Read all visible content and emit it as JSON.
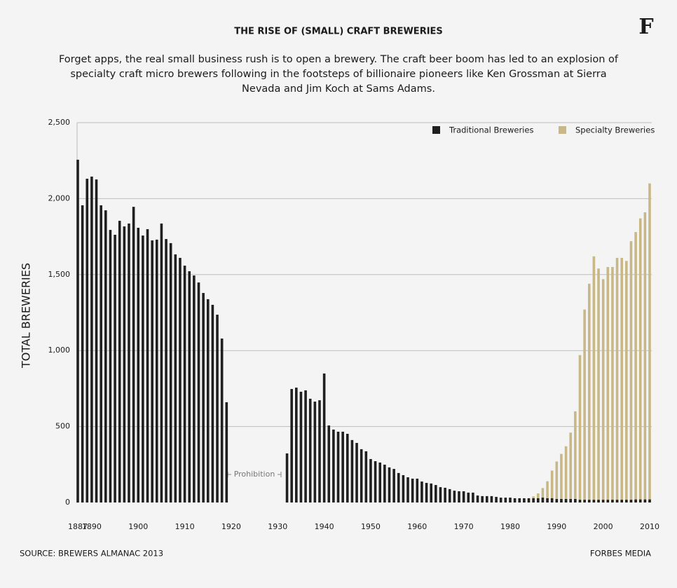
{
  "chart_data": {
    "type": "bar",
    "title": "THE RISE OF (SMALL) CRAFT BREWERIES",
    "subtitle": "Forget apps, the real small business rush is to open a brewery. The craft beer boom has led to an explosion of specialty craft micro brewers following in the footsteps of billionaire pioneers like Ken Grossman at Sierra Nevada and Jim Koch at Sams Adams.",
    "logo": "F",
    "y_label": "TOTAL BREWERIES",
    "annotation": "Prohibition",
    "source": "SOURCE: BREWERS ALMANAC 2013",
    "credit": "FORBES MEDIA",
    "x": [
      1887,
      1888,
      1889,
      1890,
      1891,
      1892,
      1893,
      1894,
      1895,
      1896,
      1897,
      1898,
      1899,
      1900,
      1901,
      1902,
      1903,
      1904,
      1905,
      1906,
      1907,
      1908,
      1909,
      1910,
      1911,
      1912,
      1913,
      1914,
      1915,
      1916,
      1917,
      1918,
      1919,
      1920,
      1921,
      1922,
      1923,
      1924,
      1925,
      1926,
      1927,
      1928,
      1929,
      1930,
      1931,
      1932,
      1933,
      1934,
      1935,
      1936,
      1937,
      1938,
      1939,
      1940,
      1941,
      1942,
      1943,
      1944,
      1945,
      1946,
      1947,
      1948,
      1949,
      1950,
      1951,
      1952,
      1953,
      1954,
      1955,
      1956,
      1957,
      1958,
      1959,
      1960,
      1961,
      1962,
      1963,
      1964,
      1965,
      1966,
      1967,
      1968,
      1969,
      1970,
      1971,
      1972,
      1973,
      1974,
      1975,
      1976,
      1977,
      1978,
      1979,
      1980,
      1981,
      1982,
      1983,
      1984,
      1985,
      1986,
      1987,
      1988,
      1989,
      1990,
      1991,
      1992,
      1993,
      1994,
      1995,
      1996,
      1997,
      1998,
      1999,
      2000,
      2001,
      2002,
      2003,
      2004,
      2005,
      2006,
      2007,
      2008,
      2009,
      2010
    ],
    "series": [
      {
        "name": "Specialty Breweries",
        "color": "#c9b887",
        "values": [
          null,
          null,
          null,
          null,
          null,
          null,
          null,
          null,
          null,
          null,
          null,
          null,
          null,
          null,
          null,
          null,
          null,
          null,
          null,
          null,
          null,
          null,
          null,
          null,
          null,
          null,
          null,
          null,
          null,
          null,
          null,
          null,
          null,
          null,
          null,
          null,
          null,
          null,
          null,
          null,
          null,
          null,
          null,
          null,
          null,
          null,
          null,
          null,
          null,
          null,
          null,
          null,
          null,
          null,
          null,
          null,
          null,
          null,
          null,
          null,
          null,
          null,
          null,
          null,
          null,
          null,
          null,
          null,
          null,
          null,
          null,
          null,
          null,
          null,
          null,
          null,
          null,
          null,
          null,
          null,
          null,
          null,
          null,
          null,
          null,
          null,
          null,
          null,
          null,
          null,
          null,
          null,
          null,
          5,
          8,
          12,
          20,
          25,
          40,
          60,
          95,
          140,
          210,
          270,
          320,
          370,
          460,
          600,
          970,
          1270,
          1440,
          1620,
          1540,
          1470,
          1550,
          1550,
          1610,
          1610,
          1590,
          1720,
          1780,
          1870,
          1910,
          2100
        ]
      },
      {
        "name": "Traditional Breweries",
        "color": "#1f1f1f",
        "values": [
          2256,
          1956,
          2131,
          2145,
          2126,
          1956,
          1923,
          1794,
          1762,
          1854,
          1817,
          1836,
          1946,
          1808,
          1757,
          1799,
          1725,
          1730,
          1836,
          1734,
          1707,
          1633,
          1610,
          1559,
          1522,
          1494,
          1448,
          1379,
          1338,
          1301,
          1236,
          1079,
          660,
          null,
          null,
          null,
          null,
          null,
          null,
          null,
          null,
          null,
          null,
          null,
          null,
          323,
          747,
          756,
          729,
          738,
          683,
          664,
          673,
          849,
          507,
          480,
          466,
          466,
          452,
          411,
          392,
          351,
          337,
          286,
          272,
          263,
          249,
          231,
          221,
          194,
          180,
          166,
          157,
          157,
          138,
          129,
          125,
          115,
          101,
          97,
          88,
          78,
          74,
          74,
          65,
          65,
          46,
          42,
          42,
          42,
          37,
          32,
          32,
          32,
          28,
          28,
          28,
          28,
          28,
          28,
          32,
          28,
          28,
          23,
          23,
          23,
          23,
          23,
          18,
          18,
          18,
          18,
          18,
          18,
          18,
          18,
          18,
          18,
          18,
          18,
          20,
          20,
          20,
          20
        ]
      }
    ],
    "xlim": [
      1887,
      2010
    ],
    "xticks": [
      1887,
      1890,
      1900,
      1910,
      1920,
      1930,
      1940,
      1950,
      1960,
      1970,
      1980,
      1990,
      2000,
      2010
    ],
    "ylim": [
      0,
      2500
    ],
    "yticks": [
      0,
      500,
      {
        "value": 1000,
        "label": "1,000"
      },
      {
        "value": 1500,
        "label": "1,500"
      },
      {
        "value": 2000,
        "label": "2,000"
      },
      {
        "value": 2500,
        "label": "2,500"
      }
    ],
    "grid": true,
    "legend": "upper right"
  }
}
